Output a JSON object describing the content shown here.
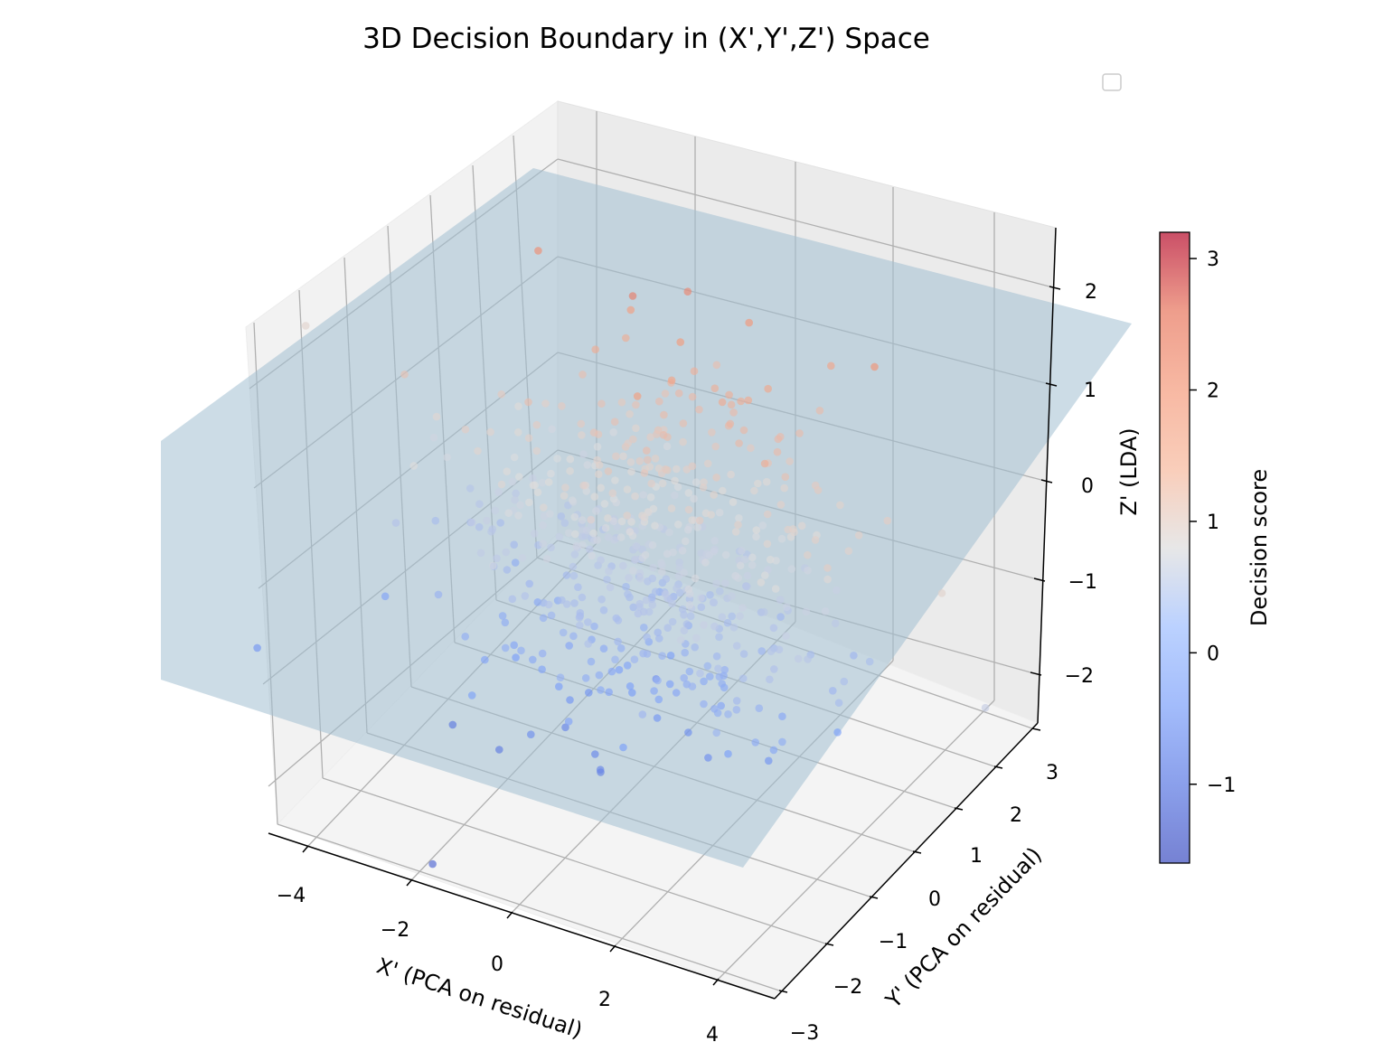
{
  "chart_data": {
    "type": "scatter",
    "projection": "3d",
    "title": "3D Decision Boundary in (X',Y',Z') Space",
    "xlabel": "X' (PCA on residual)",
    "ylabel": "Y' (PCA on residual)",
    "zlabel": "Z' (LDA)",
    "xlim": [
      -4.6,
      4.6
    ],
    "ylim": [
      -3.2,
      3.2
    ],
    "zlim": [
      -2.4,
      2.4
    ],
    "x_ticks": [
      "−4",
      "−2",
      "0",
      "2",
      "4"
    ],
    "y_ticks": [
      "−3",
      "−2",
      "−1",
      "0",
      "1",
      "2",
      "3"
    ],
    "z_ticks": [
      "−2",
      "−1",
      "0",
      "1",
      "2"
    ],
    "grid": true,
    "legend": "upper right (empty)",
    "colormap": "coolwarm",
    "colorbar": {
      "label": "Decision score",
      "range": [
        -1.6,
        3.2
      ],
      "ticks": [
        "−1",
        "0",
        "1",
        "2",
        "3"
      ]
    },
    "decision_plane": {
      "description_color": "#a3bfd1",
      "z_at_corners": {
        "x_min_y_min": 0.2,
        "x_max_y_min": -1.6,
        "x_min_y_max": 1.6,
        "x_max_y_max": 0.2
      }
    },
    "points_summary": {
      "count": 600,
      "distribution": "roughly Gaussian cloud centered near the origin",
      "score_range": [
        -1.6,
        3.2
      ]
    }
  }
}
